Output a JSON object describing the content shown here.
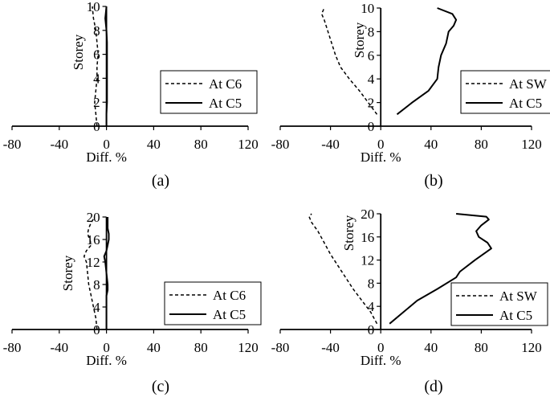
{
  "chart_data": [
    {
      "type": "line",
      "caption": "(a)",
      "xlabel": "Diff. %",
      "ylabel": "Storey",
      "xlim": [
        -80,
        120
      ],
      "ylim": [
        0,
        10
      ],
      "xticks": [
        -80,
        -40,
        0,
        40,
        80,
        120
      ],
      "yticks": [
        0,
        2,
        4,
        6,
        8,
        10
      ],
      "grid": false,
      "legend": "bottom-right",
      "series": [
        {
          "name": "At C6",
          "style": "dashed",
          "x": [
            -8,
            -9,
            -10,
            -9,
            -8,
            -8,
            -7,
            -8,
            -9,
            -11,
            -12
          ],
          "y": [
            0,
            1,
            2,
            3,
            4,
            5,
            6,
            7,
            8,
            9,
            10
          ]
        },
        {
          "name": "At C5",
          "style": "solid",
          "x": [
            0,
            0,
            0.5,
            0.5,
            0.5,
            0.5,
            0.5,
            0.5,
            0,
            -1,
            0
          ],
          "y": [
            0,
            1,
            2,
            3,
            4,
            5,
            6,
            7,
            8,
            9,
            10
          ]
        }
      ]
    },
    {
      "type": "line",
      "caption": "(b)",
      "xlabel": "Diff. %",
      "ylabel": "Storey",
      "xlim": [
        -80,
        120
      ],
      "ylim": [
        0,
        10
      ],
      "xticks": [
        -80,
        -40,
        0,
        40,
        80,
        120
      ],
      "yticks": [
        0,
        2,
        4,
        6,
        8,
        10
      ],
      "grid": false,
      "legend": "bottom-right",
      "series": [
        {
          "name": "At SW",
          "style": "dashed",
          "x": [
            -3,
            -10,
            -17,
            -25,
            -32,
            -36,
            -39,
            -42,
            -45,
            -47,
            -45
          ],
          "y": [
            1,
            2,
            3,
            4,
            5,
            6,
            7,
            8,
            9,
            9.5,
            10
          ]
        },
        {
          "name": "At C5",
          "style": "solid",
          "x": [
            13,
            25,
            38,
            45,
            46,
            48,
            52,
            54,
            58,
            60,
            57,
            45
          ],
          "y": [
            1,
            2,
            3,
            4,
            5,
            6,
            7,
            8,
            8.5,
            9,
            9.5,
            10
          ]
        }
      ]
    },
    {
      "type": "line",
      "caption": "(c)",
      "xlabel": "Diff. %",
      "ylabel": "Storey",
      "xlim": [
        -80,
        120
      ],
      "ylim": [
        0,
        20
      ],
      "xticks": [
        -80,
        -40,
        0,
        40,
        80,
        120
      ],
      "yticks": [
        0,
        4,
        8,
        12,
        16,
        20
      ],
      "grid": false,
      "legend": "bottom-right",
      "series": [
        {
          "name": "At C6",
          "style": "dashed",
          "x": [
            -8,
            -9,
            -11,
            -13,
            -15,
            -16,
            -17,
            -19,
            -17,
            -13,
            -14,
            -16,
            -15,
            -13,
            -10
          ],
          "y": [
            0,
            2,
            4,
            6,
            8,
            10,
            12,
            13,
            14,
            15,
            16,
            17,
            18,
            19,
            20
          ]
        },
        {
          "name": "At C5",
          "style": "solid",
          "x": [
            0,
            0,
            0,
            0,
            1,
            1,
            0,
            -1,
            -2,
            0,
            1,
            2,
            2,
            1,
            1
          ],
          "y": [
            0,
            2,
            4,
            6,
            7,
            8,
            10,
            12,
            13,
            14,
            15,
            16,
            17,
            18,
            20
          ]
        }
      ]
    },
    {
      "type": "line",
      "caption": "(d)",
      "xlabel": "Diff. %",
      "ylabel": "Storey",
      "xlim": [
        -80,
        120
      ],
      "ylim": [
        0,
        20
      ],
      "xticks": [
        -80,
        -40,
        0,
        40,
        80,
        120
      ],
      "yticks": [
        0,
        4,
        8,
        12,
        16,
        20
      ],
      "grid": false,
      "legend": "bottom-right",
      "series": [
        {
          "name": "At SW",
          "style": "dashed",
          "x": [
            -3,
            -8,
            -15,
            -22,
            -28,
            -34,
            -40,
            -45,
            -50,
            -55,
            -57,
            -55
          ],
          "y": [
            1,
            3,
            5,
            7,
            9,
            11,
            13,
            15,
            17,
            18.5,
            19.5,
            20
          ]
        },
        {
          "name": "At C5",
          "style": "solid",
          "x": [
            7,
            18,
            29,
            45,
            60,
            63,
            75,
            88,
            85,
            78,
            76,
            80,
            86,
            84,
            60
          ],
          "y": [
            1,
            3,
            5,
            7,
            9,
            10,
            12,
            14,
            15,
            16,
            17,
            18,
            19,
            19.5,
            20
          ]
        }
      ]
    }
  ]
}
